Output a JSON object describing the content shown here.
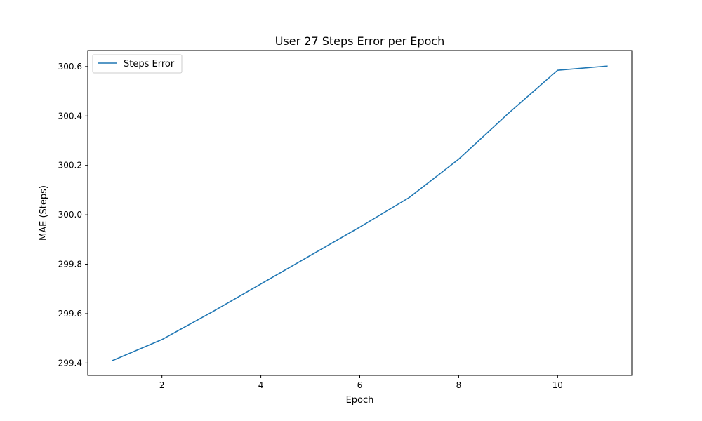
{
  "chart_data": {
    "type": "line",
    "title": "User 27 Steps Error per Epoch",
    "xlabel": "Epoch",
    "ylabel": "MAE (Steps)",
    "xlim": [
      0.5,
      11.5
    ],
    "ylim": [
      299.35,
      300.665
    ],
    "x_ticks": [
      2,
      4,
      6,
      8,
      10
    ],
    "y_ticks": [
      299.4,
      299.6,
      299.8,
      300.0,
      300.2,
      300.4,
      300.6
    ],
    "x_tick_labels": [
      "2",
      "4",
      "6",
      "8",
      "10"
    ],
    "y_tick_labels": [
      "299.4",
      "299.6",
      "299.8",
      "300.0",
      "300.2",
      "300.4",
      "300.6"
    ],
    "grid": false,
    "legend_position": "upper-left",
    "series": [
      {
        "name": "Steps Error",
        "color": "#1f77b4",
        "x": [
          1,
          2,
          3,
          4,
          5,
          6,
          7,
          8,
          9,
          10,
          11
        ],
        "y": [
          299.41,
          299.495,
          299.605,
          299.72,
          299.835,
          299.95,
          300.07,
          300.225,
          300.41,
          300.585,
          300.602
        ]
      }
    ]
  }
}
